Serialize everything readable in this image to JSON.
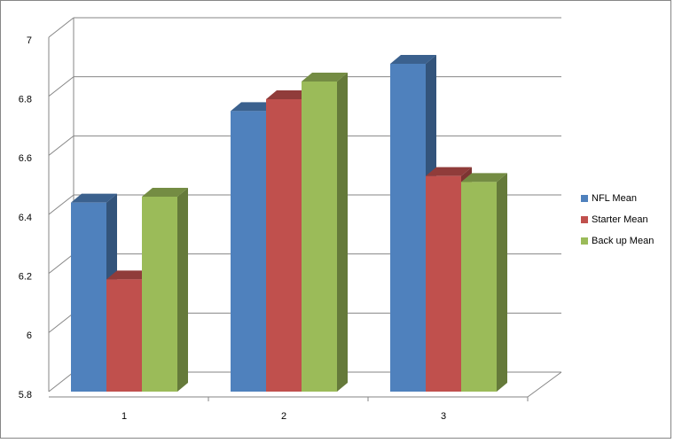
{
  "chart_data": {
    "type": "bar3d",
    "categories": [
      "1",
      "2",
      "3"
    ],
    "series": [
      {
        "name": "NFL Mean",
        "color": "#4f81bd",
        "values": [
          6.44,
          6.75,
          6.91
        ]
      },
      {
        "name": "Starter Mean",
        "color": "#c0504d",
        "values": [
          6.18,
          6.79,
          6.53
        ]
      },
      {
        "name": "Back up Mean",
        "color": "#9bbb59",
        "values": [
          6.46,
          6.85,
          6.51
        ]
      }
    ],
    "ylim": [
      5.8,
      7
    ],
    "yticks": [
      5.8,
      6,
      6.2,
      6.4,
      6.6,
      6.8,
      7
    ],
    "grid": true,
    "legend": "right"
  }
}
